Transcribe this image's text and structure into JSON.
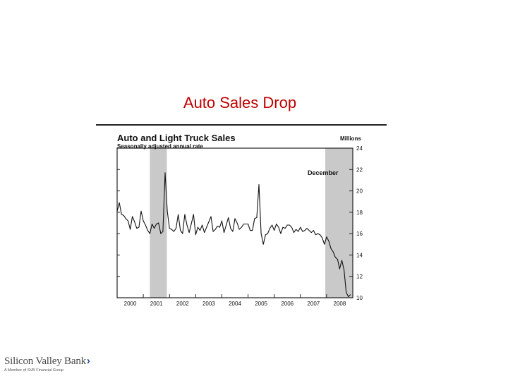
{
  "slide": {
    "title": "Auto Sales Drop"
  },
  "chart_data": {
    "type": "line",
    "title": "Auto and Light Truck Sales",
    "subtitle": "Seasonally adjusted annual rate",
    "ylabel": "Millions",
    "annotation": "December",
    "ylim": [
      10,
      24
    ],
    "y_ticks": [
      10,
      12,
      14,
      16,
      18,
      20,
      22,
      24
    ],
    "x_range": [
      2000.0,
      2009.0
    ],
    "x_tick_labels": [
      "2000",
      "2001",
      "2002",
      "2003",
      "2004",
      "2005",
      "2006",
      "2007",
      "2008"
    ],
    "recessions": [
      [
        2001.25,
        2001.9
      ],
      [
        2007.95,
        2009.0
      ]
    ],
    "grid": false,
    "series": [
      {
        "x": [
          2000.0,
          2000.083,
          2000.167,
          2000.25,
          2000.333,
          2000.417,
          2000.5,
          2000.583,
          2000.667,
          2000.75,
          2000.833,
          2000.917,
          2001.0,
          2001.083,
          2001.167,
          2001.25,
          2001.333,
          2001.417,
          2001.5,
          2001.583,
          2001.667,
          2001.75,
          2001.833,
          2001.917,
          2002.0,
          2002.083,
          2002.167,
          2002.25,
          2002.333,
          2002.417,
          2002.5,
          2002.583,
          2002.667,
          2002.75,
          2002.833,
          2002.917,
          2003.0,
          2003.083,
          2003.167,
          2003.25,
          2003.333,
          2003.417,
          2003.5,
          2003.583,
          2003.667,
          2003.75,
          2003.833,
          2003.917,
          2004.0,
          2004.083,
          2004.167,
          2004.25,
          2004.333,
          2004.417,
          2004.5,
          2004.583,
          2004.667,
          2004.75,
          2004.833,
          2004.917,
          2005.0,
          2005.083,
          2005.167,
          2005.25,
          2005.333,
          2005.417,
          2005.5,
          2005.583,
          2005.667,
          2005.75,
          2005.833,
          2005.917,
          2006.0,
          2006.083,
          2006.167,
          2006.25,
          2006.333,
          2006.417,
          2006.5,
          2006.583,
          2006.667,
          2006.75,
          2006.833,
          2006.917,
          2007.0,
          2007.083,
          2007.167,
          2007.25,
          2007.333,
          2007.417,
          2007.5,
          2007.583,
          2007.667,
          2007.75,
          2007.833,
          2007.917,
          2008.0,
          2008.083,
          2008.167,
          2008.25,
          2008.333,
          2008.417,
          2008.5,
          2008.583,
          2008.667,
          2008.75,
          2008.833,
          2008.917
        ],
        "y": [
          18.1,
          18.9,
          17.8,
          17.7,
          17.4,
          17.2,
          16.4,
          17.6,
          17.1,
          16.5,
          16.6,
          18.1,
          17.2,
          16.8,
          16.3,
          16.0,
          16.9,
          16.5,
          16.9,
          17.0,
          16.0,
          16.2,
          21.7,
          18.1,
          16.5,
          16.4,
          16.2,
          16.5,
          17.8,
          16.3,
          16.0,
          17.8,
          16.8,
          16.1,
          16.9,
          17.8,
          15.9,
          16.6,
          16.3,
          16.8,
          16.1,
          16.6,
          17.1,
          17.6,
          16.2,
          16.4,
          16.7,
          16.6,
          17.2,
          16.1,
          16.8,
          17.5,
          16.5,
          16.2,
          17.4,
          17.0,
          16.4,
          16.6,
          16.9,
          16.9,
          16.9,
          16.3,
          16.3,
          17.4,
          17.5,
          20.6,
          16.0,
          15.0,
          15.9,
          16.0,
          16.5,
          16.8,
          16.3,
          16.9,
          16.6,
          16.0,
          16.6,
          16.5,
          16.8,
          16.8,
          16.6,
          16.1,
          16.4,
          16.2,
          16.6,
          16.2,
          16.3,
          16.5,
          16.3,
          16.1,
          16.3,
          15.9,
          16.0,
          15.9,
          15.6,
          15.0,
          15.7,
          15.3,
          14.6,
          14.3,
          13.8,
          13.6,
          12.7,
          13.5,
          12.6,
          10.5,
          10.1,
          10.3
        ]
      }
    ]
  },
  "logo": {
    "name": "Silicon Valley Bank",
    "tagline": "A Member of SVB Financial Group"
  }
}
